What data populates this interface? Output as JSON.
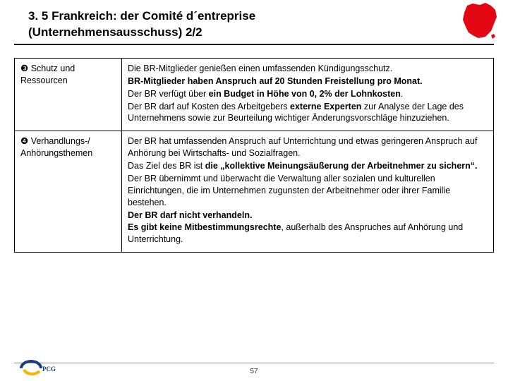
{
  "header": {
    "title_line1": "3. 5 Frankreich: der Comité d´entreprise",
    "title_line2": "(Unternehmensausschuss) 2/2"
  },
  "table": {
    "row1": {
      "left_num": "❸",
      "left_text": " Schutz und Ressourcen",
      "right": [
        {
          "t": "Die BR-Mitglieder genießen einen umfassenden Kündigungsschutz.",
          "b": false
        },
        {
          "t": "BR-Mitglieder haben Anspruch auf 20 Stunden Freistellung pro Monat.",
          "b": true
        },
        {
          "t": "Der BR verfügt über ",
          "b": false,
          "tail_bold": "ein Budget in Höhe von 0, 2% der Lohnkosten",
          "tail_plain": "."
        },
        {
          "t": "Der BR darf auf Kosten des Arbeitgebers ",
          "b": false,
          "tail_bold": "externe Experten",
          "tail_plain": " zur Analyse der Lage des Unternehmens sowie zur Beurteilung wichtiger Änderungsvorschläge hinzuziehen."
        }
      ]
    },
    "row2": {
      "left_num": "❹",
      "left_text": " Verhandlungs-/ Anhörungsthemen",
      "right": [
        {
          "t": "Der BR hat umfassenden Anspruch auf Unterrichtung und etwas geringeren Anspruch auf Anhörung bei Wirtschafts- und Sozialfragen.",
          "b": false
        },
        {
          "t": "Das Ziel des BR ist ",
          "b": false,
          "tail_bold": "die „kollektive Meinungsäußerung der Arbeitnehmer zu sichern“.",
          "tail_plain": ""
        },
        {
          "t": "Der BR übernimmt und überwacht die Verwaltung aller sozialen und kulturellen Einrichtungen, die im Unternehmen zugunsten der Arbeitnehmer oder ihrer Familie bestehen.",
          "b": false
        },
        {
          "t": "Der BR darf nicht verhandeln.",
          "b": true
        },
        {
          "t": "Es gibt keine Mitbestimmungsrechte",
          "b": true,
          "tail_plain": ", außerhalb des Anspruches auf Anhörung und Unterrichtung."
        }
      ]
    }
  },
  "footer": {
    "page": "57"
  },
  "colors": {
    "france_fill": "#e30613",
    "logo_blue": "#1b3f7a",
    "logo_yellow": "#f8b500"
  }
}
